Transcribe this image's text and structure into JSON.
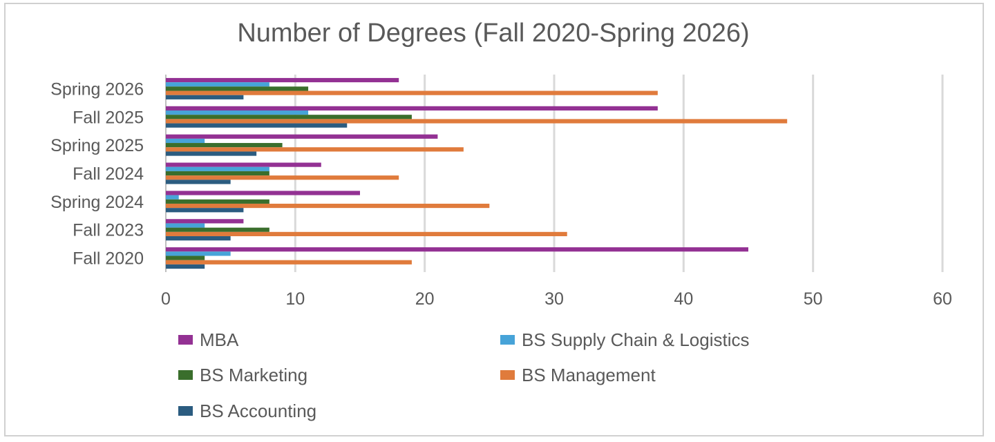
{
  "chart_data": {
    "type": "bar",
    "orientation": "horizontal",
    "title": "Number of Degrees (Fall 2020-Spring 2026)",
    "categories": [
      "Spring 2026",
      "Fall 2025",
      "Spring 2025",
      "Fall 2024",
      "Spring 2024",
      "Fall 2023",
      "Fall 2020"
    ],
    "x_ticks": [
      "0",
      "10",
      "20",
      "30",
      "40",
      "50",
      "60"
    ],
    "xlim": [
      0,
      60
    ],
    "grid": "vertical",
    "legend_position": "bottom",
    "series": [
      {
        "name": "MBA",
        "color": "#933193",
        "values": [
          18,
          38,
          21,
          12,
          15,
          6,
          45
        ]
      },
      {
        "name": "BS Supply Chain & Logistics",
        "color": "#47a3d8",
        "values": [
          8,
          11,
          3,
          8,
          1,
          3,
          5
        ]
      },
      {
        "name": "BS Marketing",
        "color": "#3a6e2c",
        "values": [
          11,
          19,
          9,
          8,
          8,
          8,
          3
        ]
      },
      {
        "name": "BS Management",
        "color": "#e07b3c",
        "values": [
          38,
          48,
          23,
          18,
          25,
          31,
          19
        ]
      },
      {
        "name": "BS Accounting",
        "color": "#2b5c80",
        "values": [
          6,
          14,
          7,
          5,
          6,
          5,
          3
        ]
      }
    ]
  }
}
